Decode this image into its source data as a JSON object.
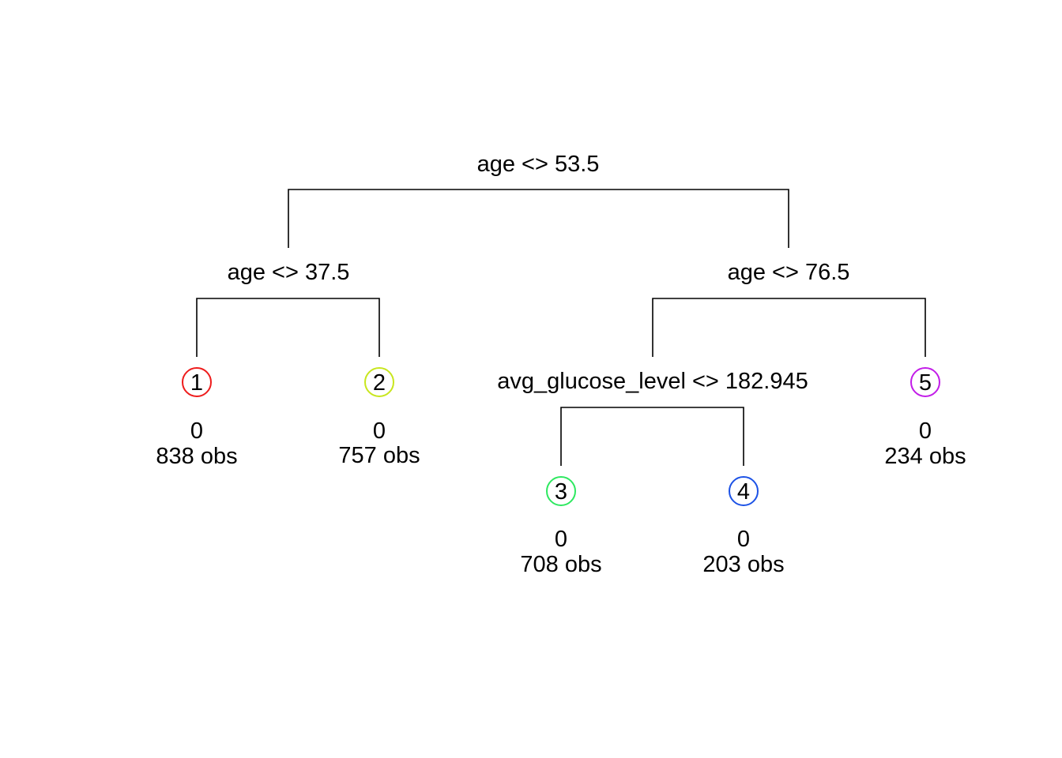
{
  "tree": {
    "splits": [
      {
        "id": "root",
        "label": "age <> 53.5"
      },
      {
        "id": "left",
        "label": "age <> 37.5"
      },
      {
        "id": "right",
        "label": "age <> 76.5"
      },
      {
        "id": "right-left",
        "label": "avg_glucose_level <> 182.945"
      }
    ],
    "leaves": [
      {
        "id": "1",
        "number": "1",
        "prediction": "0",
        "obs": "838 obs",
        "color": "#ee1c1c"
      },
      {
        "id": "2",
        "number": "2",
        "prediction": "0",
        "obs": "757 obs",
        "color": "#c8e61e"
      },
      {
        "id": "3",
        "number": "3",
        "prediction": "0",
        "obs": "708 obs",
        "color": "#2ee860"
      },
      {
        "id": "4",
        "number": "4",
        "prediction": "0",
        "obs": "203 obs",
        "color": "#1c52e6"
      },
      {
        "id": "5",
        "number": "5",
        "prediction": "0",
        "obs": "234 obs",
        "color": "#c21ce8"
      }
    ]
  }
}
